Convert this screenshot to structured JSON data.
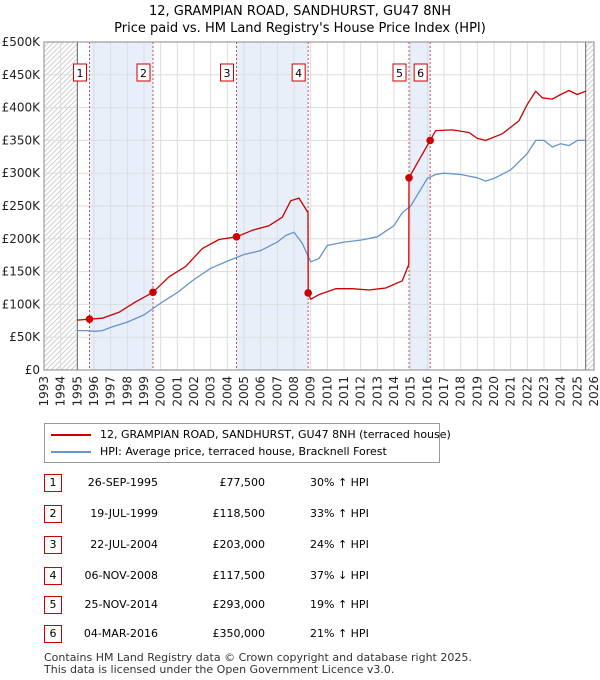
{
  "title_line1": "12, GRAMPIAN ROAD, SANDHURST, GU47 8NH",
  "title_line2": "Price paid vs. HM Land Registry's House Price Index (HPI)",
  "colors": {
    "price_line": "#cc0000",
    "hpi_line": "#6495cd",
    "shade": "#e8eefa",
    "grid": "#dddddd",
    "marker": "#cc0000"
  },
  "chart_data": {
    "type": "line",
    "title": "Price paid vs. HM Land Registry's House Price Index (HPI)",
    "xlabel": "",
    "ylabel": "",
    "xlim": [
      1993,
      2026
    ],
    "ylim": [
      0,
      500000
    ],
    "x_ticks": [
      "1993",
      "1994",
      "1995",
      "1996",
      "1997",
      "1998",
      "1999",
      "2000",
      "2001",
      "2002",
      "2003",
      "2004",
      "2005",
      "2006",
      "2007",
      "2008",
      "2009",
      "2010",
      "2011",
      "2012",
      "2013",
      "2014",
      "2015",
      "2016",
      "2017",
      "2018",
      "2019",
      "2020",
      "2021",
      "2022",
      "2023",
      "2024",
      "2025",
      "2026"
    ],
    "y_ticks": [
      {
        "value": 0,
        "label": "£0"
      },
      {
        "value": 50000,
        "label": "£50K"
      },
      {
        "value": 100000,
        "label": "£100K"
      },
      {
        "value": 150000,
        "label": "£150K"
      },
      {
        "value": 200000,
        "label": "£200K"
      },
      {
        "value": 250000,
        "label": "£250K"
      },
      {
        "value": 300000,
        "label": "£300K"
      },
      {
        "value": 350000,
        "label": "£350K"
      },
      {
        "value": 400000,
        "label": "£400K"
      },
      {
        "value": 450000,
        "label": "£450K"
      },
      {
        "value": 500000,
        "label": "£500K"
      }
    ],
    "data_start": 1995.0,
    "data_end": 2025.5,
    "shaded_periods": [
      [
        1995.73,
        1999.54
      ],
      [
        2004.55,
        2008.85
      ],
      [
        2014.9,
        2016.17
      ]
    ],
    "sales": [
      {
        "id": "1",
        "x": 1995.73,
        "price": 77500
      },
      {
        "id": "2",
        "x": 1999.54,
        "price": 118500
      },
      {
        "id": "3",
        "x": 2004.55,
        "price": 203000
      },
      {
        "id": "4",
        "x": 2008.85,
        "price": 117500
      },
      {
        "id": "5",
        "x": 2014.9,
        "price": 293000
      },
      {
        "id": "6",
        "x": 2016.17,
        "price": 350000
      }
    ],
    "series": [
      {
        "name": "12, GRAMPIAN ROAD, SANDHURST, GU47 8NH (terraced house)",
        "x": [
          1995.0,
          1995.73,
          1996.5,
          1997.5,
          1998.5,
          1999.54,
          2000.5,
          2001.5,
          2002.5,
          2003.5,
          2004.55,
          2005.5,
          2006.5,
          2007.3,
          2007.8,
          2008.3,
          2008.84,
          2008.85,
          2009.0,
          2009.5,
          2010.5,
          2011.5,
          2012.5,
          2013.5,
          2014.5,
          2014.89,
          2014.9,
          2015.5,
          2016.17,
          2016.5,
          2017.5,
          2018.5,
          2019.0,
          2019.5,
          2020.5,
          2021.5,
          2022.0,
          2022.5,
          2022.9,
          2023.5,
          2024.0,
          2024.5,
          2025.0,
          2025.5
        ],
        "y": [
          76000,
          77500,
          79000,
          88000,
          104000,
          118500,
          142000,
          158000,
          185000,
          199000,
          203000,
          213000,
          220000,
          233000,
          258000,
          262000,
          240000,
          117500,
          108000,
          115000,
          124000,
          124000,
          122000,
          125000,
          136000,
          161000,
          293000,
          320000,
          350000,
          365000,
          366000,
          362000,
          353000,
          350000,
          360000,
          380000,
          405000,
          425000,
          415000,
          413000,
          420000,
          426000,
          420000,
          425000
        ]
      },
      {
        "name": "HPI: Average price, terraced house, Bracknell Forest",
        "x": [
          1995.0,
          1995.5,
          1996.0,
          1996.5,
          1997.0,
          1998.0,
          1999.0,
          2000.0,
          2001.0,
          2002.0,
          2003.0,
          2004.0,
          2005.0,
          2006.0,
          2007.0,
          2007.5,
          2008.0,
          2008.5,
          2009.0,
          2009.5,
          2010.0,
          2011.0,
          2012.0,
          2013.0,
          2014.0,
          2014.5,
          2015.0,
          2016.0,
          2016.5,
          2017.0,
          2018.0,
          2019.0,
          2019.5,
          2020.0,
          2021.0,
          2022.0,
          2022.5,
          2023.0,
          2023.5,
          2024.0,
          2024.5,
          2025.0,
          2025.5
        ],
        "y": [
          60000,
          60000,
          59000,
          60000,
          65000,
          73000,
          84000,
          102000,
          118000,
          138000,
          155000,
          166000,
          176000,
          182000,
          195000,
          205000,
          210000,
          193000,
          165000,
          170000,
          190000,
          195000,
          198000,
          203000,
          220000,
          240000,
          250000,
          292000,
          298000,
          300000,
          298000,
          293000,
          288000,
          292000,
          305000,
          330000,
          350000,
          350000,
          340000,
          345000,
          342000,
          350000,
          350000
        ]
      }
    ],
    "legend": [
      {
        "label": "12, GRAMPIAN ROAD, SANDHURST, GU47 8NH (terraced house)",
        "color": "#cc0000"
      },
      {
        "label": "HPI: Average price, terraced house, Bracknell Forest",
        "color": "#6495cd"
      }
    ]
  },
  "transactions": [
    {
      "id": "1",
      "date": "26-SEP-1995",
      "price": "£77,500",
      "hpi": "30% ↑ HPI"
    },
    {
      "id": "2",
      "date": "19-JUL-1999",
      "price": "£118,500",
      "hpi": "33% ↑ HPI"
    },
    {
      "id": "3",
      "date": "22-JUL-2004",
      "price": "£203,000",
      "hpi": "24% ↑ HPI"
    },
    {
      "id": "4",
      "date": "06-NOV-2008",
      "price": "£117,500",
      "hpi": "37% ↓ HPI"
    },
    {
      "id": "5",
      "date": "25-NOV-2014",
      "price": "£293,000",
      "hpi": "19% ↑ HPI"
    },
    {
      "id": "6",
      "date": "04-MAR-2016",
      "price": "£350,000",
      "hpi": "21% ↑ HPI"
    }
  ],
  "footer_line1": "Contains HM Land Registry data © Crown copyright and database right 2025.",
  "footer_line2": "This data is licensed under the Open Government Licence v3.0."
}
